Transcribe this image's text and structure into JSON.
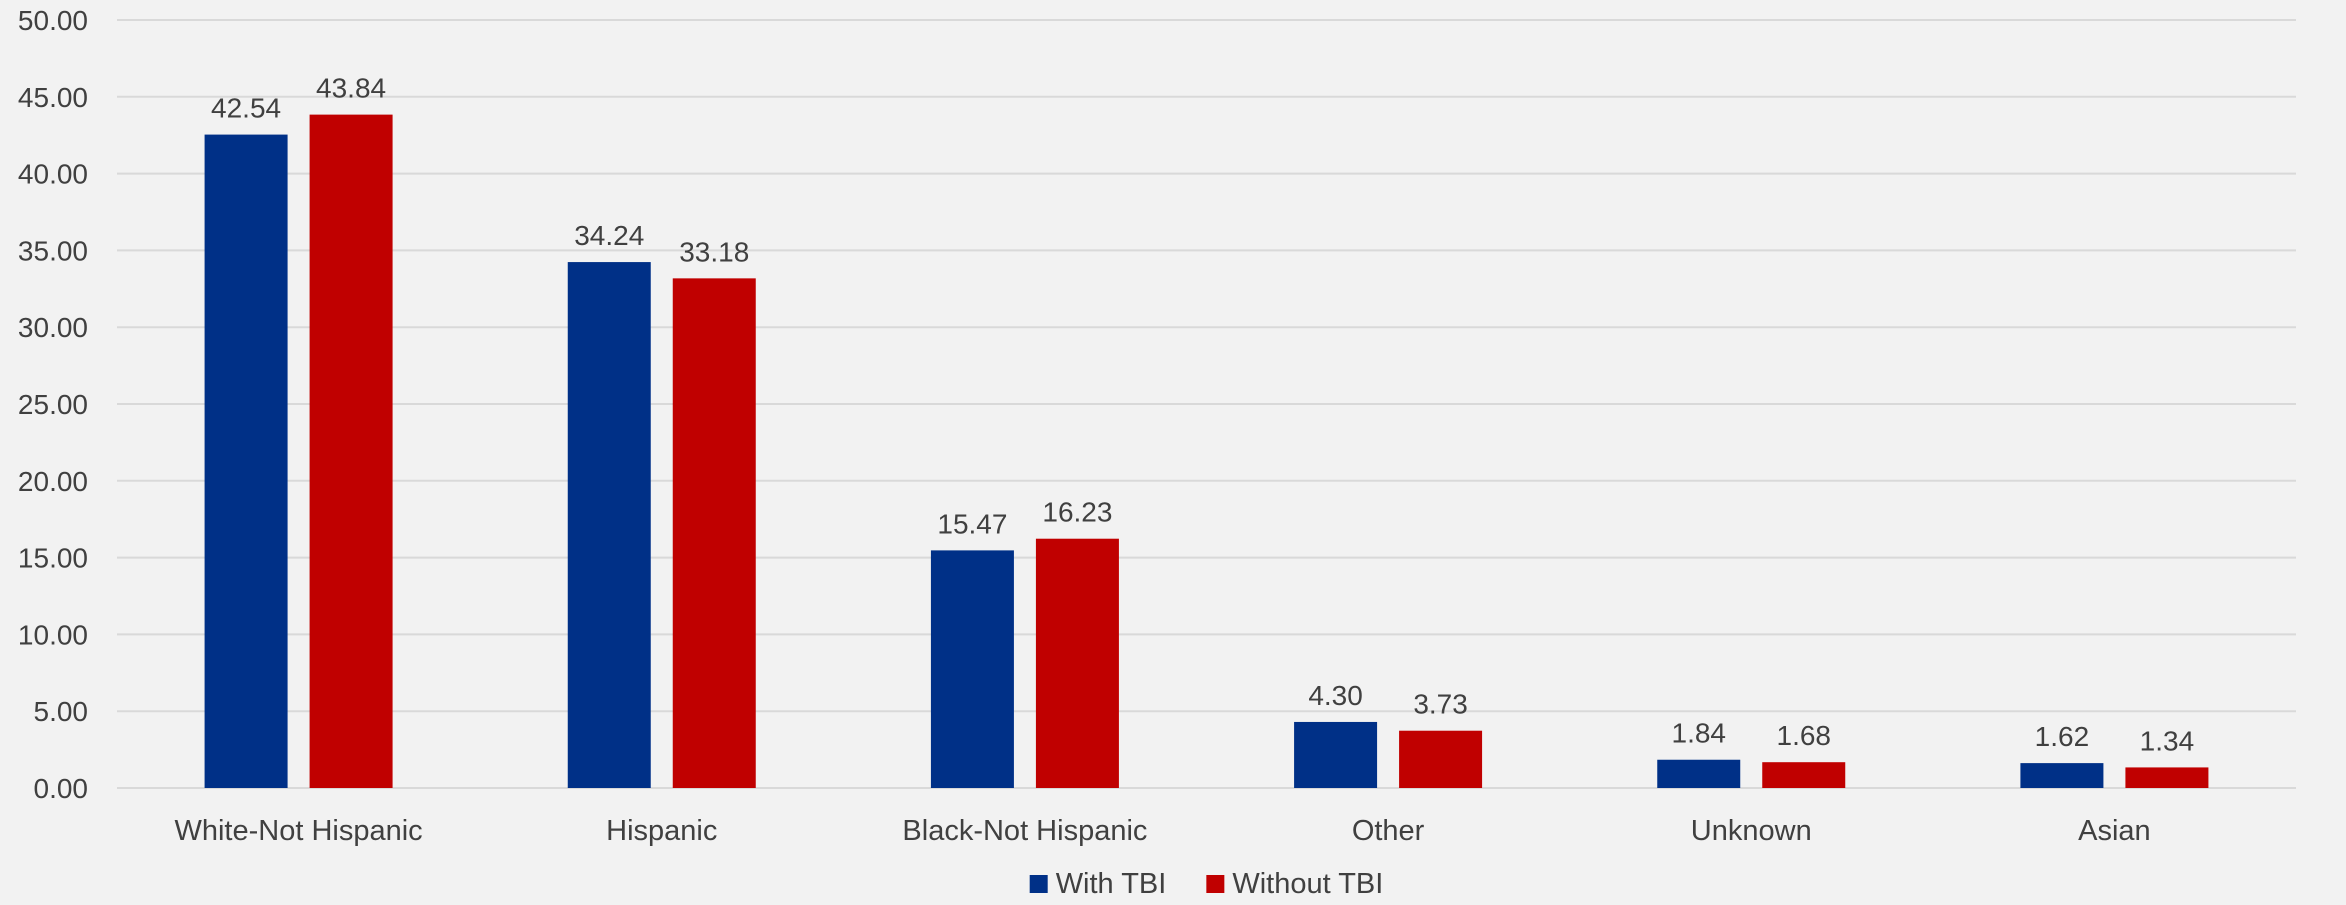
{
  "chart_data": {
    "type": "bar",
    "categories": [
      "White-Not Hispanic",
      "Hispanic",
      "Black-Not Hispanic",
      "Other",
      "Unknown",
      "Asian"
    ],
    "series": [
      {
        "name": "With TBI",
        "color": "#003087",
        "values": [
          42.54,
          34.24,
          15.47,
          4.3,
          1.84,
          1.62
        ],
        "labels": [
          "42.54",
          "34.24",
          "15.47",
          "4.30",
          "1.84",
          "1.62"
        ]
      },
      {
        "name": "Without TBI",
        "color": "#c00000",
        "values": [
          43.84,
          33.18,
          16.23,
          3.73,
          1.68,
          1.34
        ],
        "labels": [
          "43.84",
          "33.18",
          "16.23",
          "3.73",
          "1.68",
          "1.34"
        ]
      }
    ],
    "y_ticks": [
      "0.00",
      "5.00",
      "10.00",
      "15.00",
      "20.00",
      "25.00",
      "30.00",
      "35.00",
      "40.00",
      "45.00",
      "50.00"
    ],
    "ylim": [
      0,
      50
    ],
    "grid": true,
    "legend_position": "bottom",
    "title": "",
    "xlabel": "",
    "ylabel": ""
  }
}
